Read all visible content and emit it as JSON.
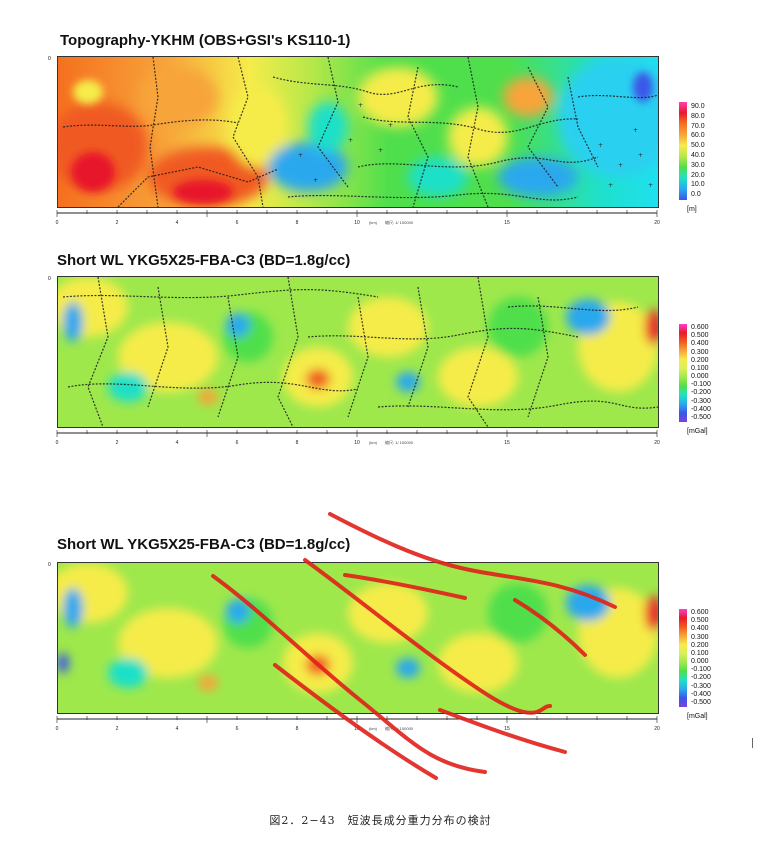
{
  "panels": [
    {
      "title": "Topography-YKHM (OBS+GSI's KS110-1)",
      "legend_values": [
        "90.0",
        "80.0",
        "70.0",
        "60.0",
        "50.0",
        "40.0",
        "30.0",
        "20.0",
        "10.0",
        "0.0"
      ],
      "legend_unit": "[m]"
    },
    {
      "title": "Short WL YKG5X25-FBA-C3 (BD=1.8g/cc)",
      "legend_values": [
        "0.600",
        "0.500",
        "0.400",
        "0.300",
        "0.200",
        "0.100",
        "0.000",
        "-0.100",
        "-0.200",
        "-0.300",
        "-0.400",
        "-0.500"
      ],
      "legend_unit": "[mGal]"
    },
    {
      "title": "Short WL YKG5X25-FBA-C3 (BD=1.8g/cc)",
      "legend_values": [
        "0.600",
        "0.500",
        "0.400",
        "0.300",
        "0.200",
        "0.100",
        "0.000",
        "-0.100",
        "-0.200",
        "-0.300",
        "-0.400",
        "-0.500"
      ],
      "legend_unit": "[mGal]"
    }
  ],
  "axis": {
    "ticks": [
      "0",
      "2",
      "4",
      "6",
      "8",
      "10",
      "15",
      "20"
    ],
    "unit_label": "(km)",
    "scale_label": "縮尺: 1/ 100000",
    "y_mark": "0"
  },
  "colors": {
    "topo_scale": [
      "#ff3fb0",
      "#e8192c",
      "#f5701f",
      "#f7a43a",
      "#f5ec4a",
      "#b8e84a",
      "#4fdf4c",
      "#1fe0c8",
      "#2aa8ee",
      "#3a57e8"
    ],
    "gravity_scale": [
      "#ff3fd0",
      "#e8192c",
      "#f05a20",
      "#f7a43a",
      "#f5ec4a",
      "#d8f05a",
      "#9ee84c",
      "#4fdf4c",
      "#1fe0c8",
      "#2aa8ee",
      "#3a57e8",
      "#7a40e0"
    ],
    "fault_line": "#e0201a"
  },
  "caption": "図2．2−43　短波長成分重力分布の検討"
}
